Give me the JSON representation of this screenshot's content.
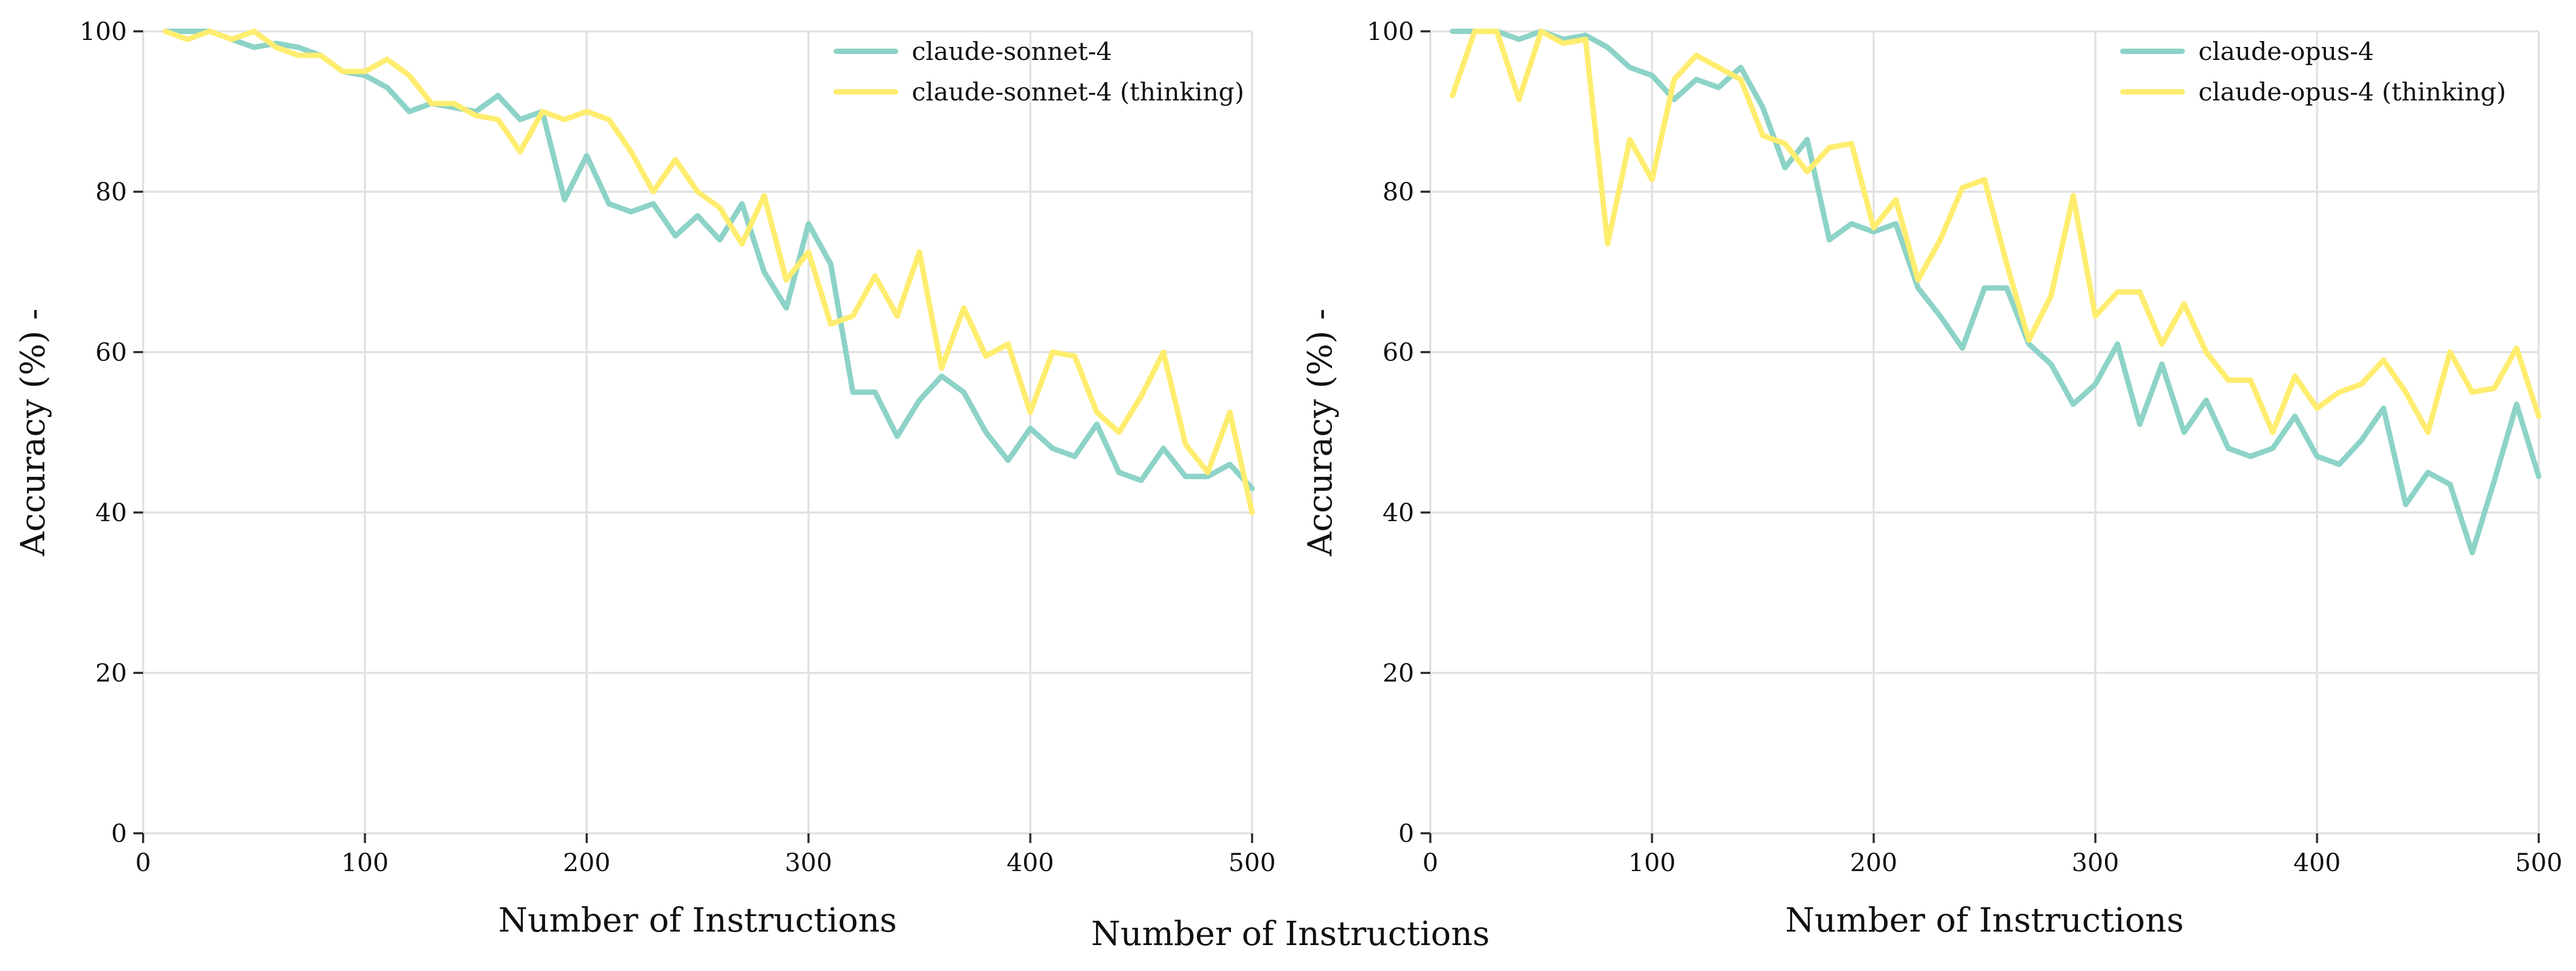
{
  "figure": {
    "shared_xlabel": "Number of Instructions"
  },
  "chart_data": [
    {
      "type": "line",
      "title": "",
      "xlabel": "Number of Instructions",
      "ylabel": "Accuracy (%) -",
      "xlim": [
        0,
        500
      ],
      "ylim": [
        0,
        100
      ],
      "xticks": [
        0,
        100,
        200,
        300,
        400,
        500
      ],
      "yticks": [
        0,
        20,
        40,
        60,
        80,
        100
      ],
      "grid": true,
      "legend_position": "top-right",
      "x": [
        10,
        20,
        30,
        40,
        50,
        60,
        70,
        80,
        90,
        100,
        110,
        120,
        130,
        140,
        150,
        160,
        170,
        180,
        190,
        200,
        210,
        220,
        230,
        240,
        250,
        260,
        270,
        280,
        290,
        300,
        310,
        320,
        330,
        340,
        350,
        360,
        370,
        380,
        390,
        400,
        410,
        420,
        430,
        440,
        450,
        460,
        470,
        480,
        490,
        500
      ],
      "series": [
        {
          "name": "claude-sonnet-4",
          "color": "#8dd3c7",
          "values": [
            100,
            100,
            100,
            99,
            98,
            98.5,
            98,
            97,
            95,
            94.5,
            93,
            90,
            91,
            90.5,
            90,
            92,
            89,
            90,
            79,
            84.5,
            78.5,
            77.5,
            78.5,
            74.5,
            77,
            74,
            78.5,
            70,
            65.5,
            76,
            71,
            55,
            55,
            49.5,
            54,
            57,
            55,
            50,
            46.5,
            50.5,
            48,
            47,
            51,
            45,
            44,
            48,
            44.5,
            44.5,
            46,
            43
          ]
        },
        {
          "name": "claude-sonnet-4 (thinking)",
          "color": "#ffed6f",
          "values": [
            100,
            99,
            100,
            99,
            100,
            98,
            97,
            97,
            95,
            95,
            96.5,
            94.5,
            91,
            91,
            89.5,
            89,
            85,
            90,
            89,
            90,
            89,
            85,
            80,
            84,
            80,
            78,
            73.5,
            79.5,
            69,
            72.5,
            63.5,
            64.5,
            69.5,
            64.5,
            72.5,
            58,
            65.5,
            59.5,
            61,
            52.5,
            60,
            59.5,
            52.5,
            50,
            54.5,
            60,
            48.5,
            45,
            52.5,
            40
          ]
        }
      ]
    },
    {
      "type": "line",
      "title": "",
      "xlabel": "Number of Instructions",
      "ylabel": "Accuracy (%) -",
      "xlim": [
        0,
        500
      ],
      "ylim": [
        0,
        100
      ],
      "xticks": [
        0,
        100,
        200,
        300,
        400,
        500
      ],
      "yticks": [
        0,
        20,
        40,
        60,
        80,
        100
      ],
      "grid": true,
      "legend_position": "top-right",
      "x": [
        10,
        20,
        30,
        40,
        50,
        60,
        70,
        80,
        90,
        100,
        110,
        120,
        130,
        140,
        150,
        160,
        170,
        180,
        190,
        200,
        210,
        220,
        230,
        240,
        250,
        260,
        270,
        280,
        290,
        300,
        310,
        320,
        330,
        340,
        350,
        360,
        370,
        380,
        390,
        400,
        410,
        420,
        430,
        440,
        450,
        460,
        470,
        480,
        490,
        500
      ],
      "series": [
        {
          "name": "claude-opus-4",
          "color": "#8dd3c7",
          "values": [
            100,
            100,
            100,
            99,
            100,
            99,
            99.5,
            98,
            95.5,
            94.5,
            91.5,
            94,
            93,
            95.5,
            90.5,
            83,
            86.5,
            74,
            76,
            75,
            76,
            68,
            64.5,
            60.5,
            68,
            68,
            61,
            58.5,
            53.5,
            56,
            61,
            51,
            58.5,
            50,
            54,
            48,
            47,
            48,
            52,
            47,
            46,
            49,
            53,
            41,
            45,
            43.5,
            35,
            44,
            53.5,
            44.5
          ]
        },
        {
          "name": "claude-opus-4 (thinking)",
          "color": "#ffed6f",
          "values": [
            92,
            100,
            100,
            91.5,
            100,
            98.5,
            99,
            73.5,
            86.5,
            81.5,
            94,
            97,
            95.5,
            94,
            87,
            86,
            82.5,
            85.5,
            86,
            75.5,
            79,
            69,
            74,
            80.5,
            81.5,
            71,
            61.5,
            67,
            79.5,
            64.5,
            67.5,
            67.5,
            61,
            66,
            60,
            56.5,
            56.5,
            50,
            57,
            53,
            55,
            56,
            59,
            55,
            50,
            60,
            55,
            55.5,
            60.5,
            52
          ]
        }
      ]
    }
  ]
}
